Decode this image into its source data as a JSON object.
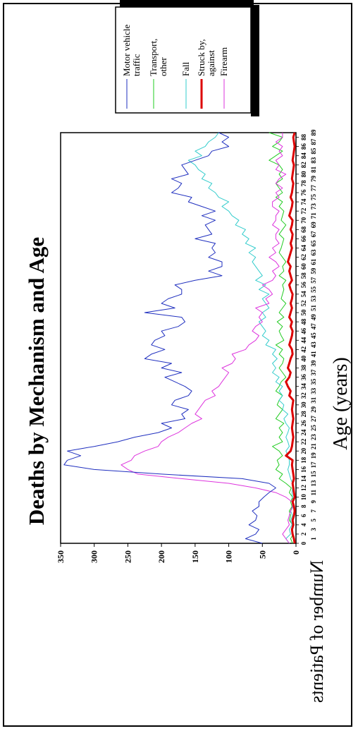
{
  "chart_data": {
    "type": "line",
    "title": "Deaths by Mechanism and Age",
    "xlabel": "Age (years)",
    "ylabel": "Number of Patients",
    "xlim": [
      0,
      89
    ],
    "ylim": [
      0,
      350
    ],
    "yticks": [
      0,
      50,
      100,
      150,
      200,
      250,
      300,
      350
    ],
    "xticks_row1": [
      "0",
      "2",
      "4",
      "6",
      "8",
      "10",
      "12",
      "14",
      "16",
      "18",
      "20",
      "22",
      "24",
      "26",
      "28",
      "30",
      "32",
      "34",
      "36",
      "38",
      "40",
      "42",
      "44",
      "46",
      "48",
      "50",
      "52",
      "54",
      "56",
      "58",
      "60",
      "62",
      "64",
      "66",
      "68",
      "70",
      "72",
      "74",
      "76",
      "78",
      "80",
      "82",
      "84",
      "86",
      "88"
    ],
    "xticks_row2": [
      "1",
      "3",
      "5",
      "7",
      "9",
      "11",
      "13",
      "15",
      "17",
      "19",
      "21",
      "23",
      "25",
      "27",
      "29",
      "31",
      "33",
      "35",
      "37",
      "39",
      "41",
      "43",
      "45",
      "47",
      "49",
      "51",
      "53",
      "55",
      "57",
      "59",
      "61",
      "63",
      "65",
      "67",
      "69",
      "71",
      "73",
      "75",
      "77",
      "79",
      "81",
      "83",
      "85",
      "87",
      "89"
    ],
    "legend_position": "top-right",
    "grid": false,
    "x": [
      0,
      1,
      2,
      3,
      4,
      5,
      6,
      7,
      8,
      9,
      10,
      11,
      12,
      13,
      14,
      15,
      16,
      17,
      18,
      19,
      20,
      21,
      22,
      23,
      24,
      25,
      26,
      27,
      28,
      29,
      30,
      31,
      32,
      33,
      34,
      35,
      36,
      37,
      38,
      39,
      40,
      41,
      42,
      43,
      44,
      45,
      46,
      47,
      48,
      49,
      50,
      51,
      52,
      53,
      54,
      55,
      56,
      57,
      58,
      59,
      60,
      61,
      62,
      63,
      64,
      65,
      66,
      67,
      68,
      69,
      70,
      71,
      72,
      73,
      74,
      75,
      76,
      77,
      78,
      79,
      80,
      81,
      82,
      83,
      84,
      85,
      86,
      87,
      88,
      89
    ],
    "series": [
      {
        "name": "Motor vehicle traffic",
        "color": "#1f2fbf",
        "width": 1,
        "values": [
          50,
          75,
          60,
          55,
          70,
          60,
          58,
          65,
          55,
          55,
          48,
          40,
          30,
          40,
          80,
          200,
          300,
          345,
          340,
          320,
          340,
          300,
          265,
          240,
          205,
          185,
          200,
          165,
          170,
          160,
          185,
          180,
          160,
          155,
          165,
          180,
          195,
          170,
          200,
          185,
          225,
          215,
          195,
          215,
          210,
          195,
          200,
          175,
          165,
          170,
          225,
          180,
          200,
          190,
          170,
          170,
          180,
          150,
          110,
          130,
          110,
          110,
          130,
          120,
          125,
          120,
          150,
          125,
          130,
          135,
          120,
          140,
          120,
          140,
          160,
          155,
          185,
          175,
          170,
          185,
          160,
          165,
          170,
          150,
          130,
          125,
          100,
          110,
          100,
          115
        ]
      },
      {
        "name": "Transport, other",
        "color": "#22cc22",
        "width": 1,
        "values": [
          5,
          8,
          4,
          6,
          5,
          10,
          8,
          10,
          6,
          8,
          5,
          10,
          7,
          15,
          25,
          20,
          30,
          25,
          28,
          20,
          25,
          35,
          20,
          25,
          20,
          25,
          18,
          30,
          25,
          20,
          28,
          25,
          20,
          30,
          25,
          22,
          15,
          20,
          25,
          20,
          18,
          25,
          20,
          30,
          18,
          22,
          25,
          20,
          28,
          18,
          25,
          20,
          15,
          22,
          20,
          18,
          20,
          15,
          25,
          18,
          20,
          15,
          20,
          25,
          22,
          20,
          18,
          25,
          20,
          15,
          22,
          20,
          18,
          25,
          20,
          30,
          20,
          25,
          30,
          20,
          25,
          20,
          25,
          40,
          30,
          20,
          35,
          25,
          20,
          40
        ]
      },
      {
        "name": "Fall",
        "color": "#33cccc",
        "width": 1,
        "values": [
          10,
          15,
          8,
          10,
          6,
          8,
          5,
          8,
          4,
          5,
          5,
          6,
          5,
          5,
          8,
          10,
          12,
          10,
          10,
          12,
          15,
          10,
          12,
          15,
          12,
          10,
          15,
          18,
          12,
          20,
          18,
          25,
          20,
          25,
          20,
          30,
          25,
          35,
          30,
          35,
          28,
          35,
          30,
          45,
          40,
          50,
          45,
          50,
          55,
          45,
          50,
          40,
          45,
          50,
          40,
          55,
          45,
          60,
          50,
          55,
          60,
          65,
          60,
          70,
          60,
          75,
          70,
          80,
          75,
          90,
          85,
          95,
          100,
          110,
          100,
          115,
          120,
          130,
          125,
          140,
          135,
          145,
          150,
          160,
          140,
          150,
          135,
          130,
          120,
          115
        ]
      },
      {
        "name": "Struck by, against",
        "color": "#dd0000",
        "width": 3,
        "values": [
          2,
          3,
          5,
          6,
          4,
          5,
          3,
          2,
          3,
          5,
          2,
          3,
          4,
          5,
          3,
          4,
          5,
          6,
          5,
          15,
          8,
          6,
          5,
          4,
          5,
          6,
          5,
          4,
          5,
          6,
          5,
          4,
          10,
          8,
          12,
          15,
          10,
          8,
          12,
          10,
          8,
          5,
          6,
          10,
          8,
          6,
          5,
          8,
          6,
          10,
          8,
          6,
          8,
          6,
          5,
          8,
          10,
          6,
          8,
          10,
          8,
          12,
          10,
          8,
          6,
          8,
          6,
          5,
          8,
          6,
          5,
          10,
          8,
          6,
          5,
          8,
          6,
          5,
          4,
          6,
          5,
          4,
          3,
          5,
          4,
          3,
          2,
          3,
          4,
          2
        ]
      },
      {
        "name": "Firearm",
        "color": "#dd33dd",
        "width": 1,
        "values": [
          10,
          15,
          20,
          15,
          10,
          12,
          10,
          8,
          5,
          6,
          15,
          30,
          60,
          100,
          170,
          235,
          250,
          260,
          245,
          240,
          225,
          205,
          200,
          190,
          175,
          165,
          155,
          140,
          150,
          145,
          140,
          135,
          120,
          125,
          115,
          110,
          105,
          100,
          110,
          95,
          90,
          95,
          75,
          70,
          60,
          55,
          65,
          60,
          50,
          55,
          50,
          60,
          40,
          45,
          35,
          40,
          50,
          35,
          30,
          35,
          25,
          30,
          40,
          30,
          35,
          25,
          30,
          30,
          25,
          35,
          30,
          30,
          25,
          35,
          35,
          25,
          30,
          20,
          30,
          25,
          15,
          30,
          25,
          30,
          20,
          25,
          20,
          30,
          20,
          20
        ]
      }
    ]
  }
}
